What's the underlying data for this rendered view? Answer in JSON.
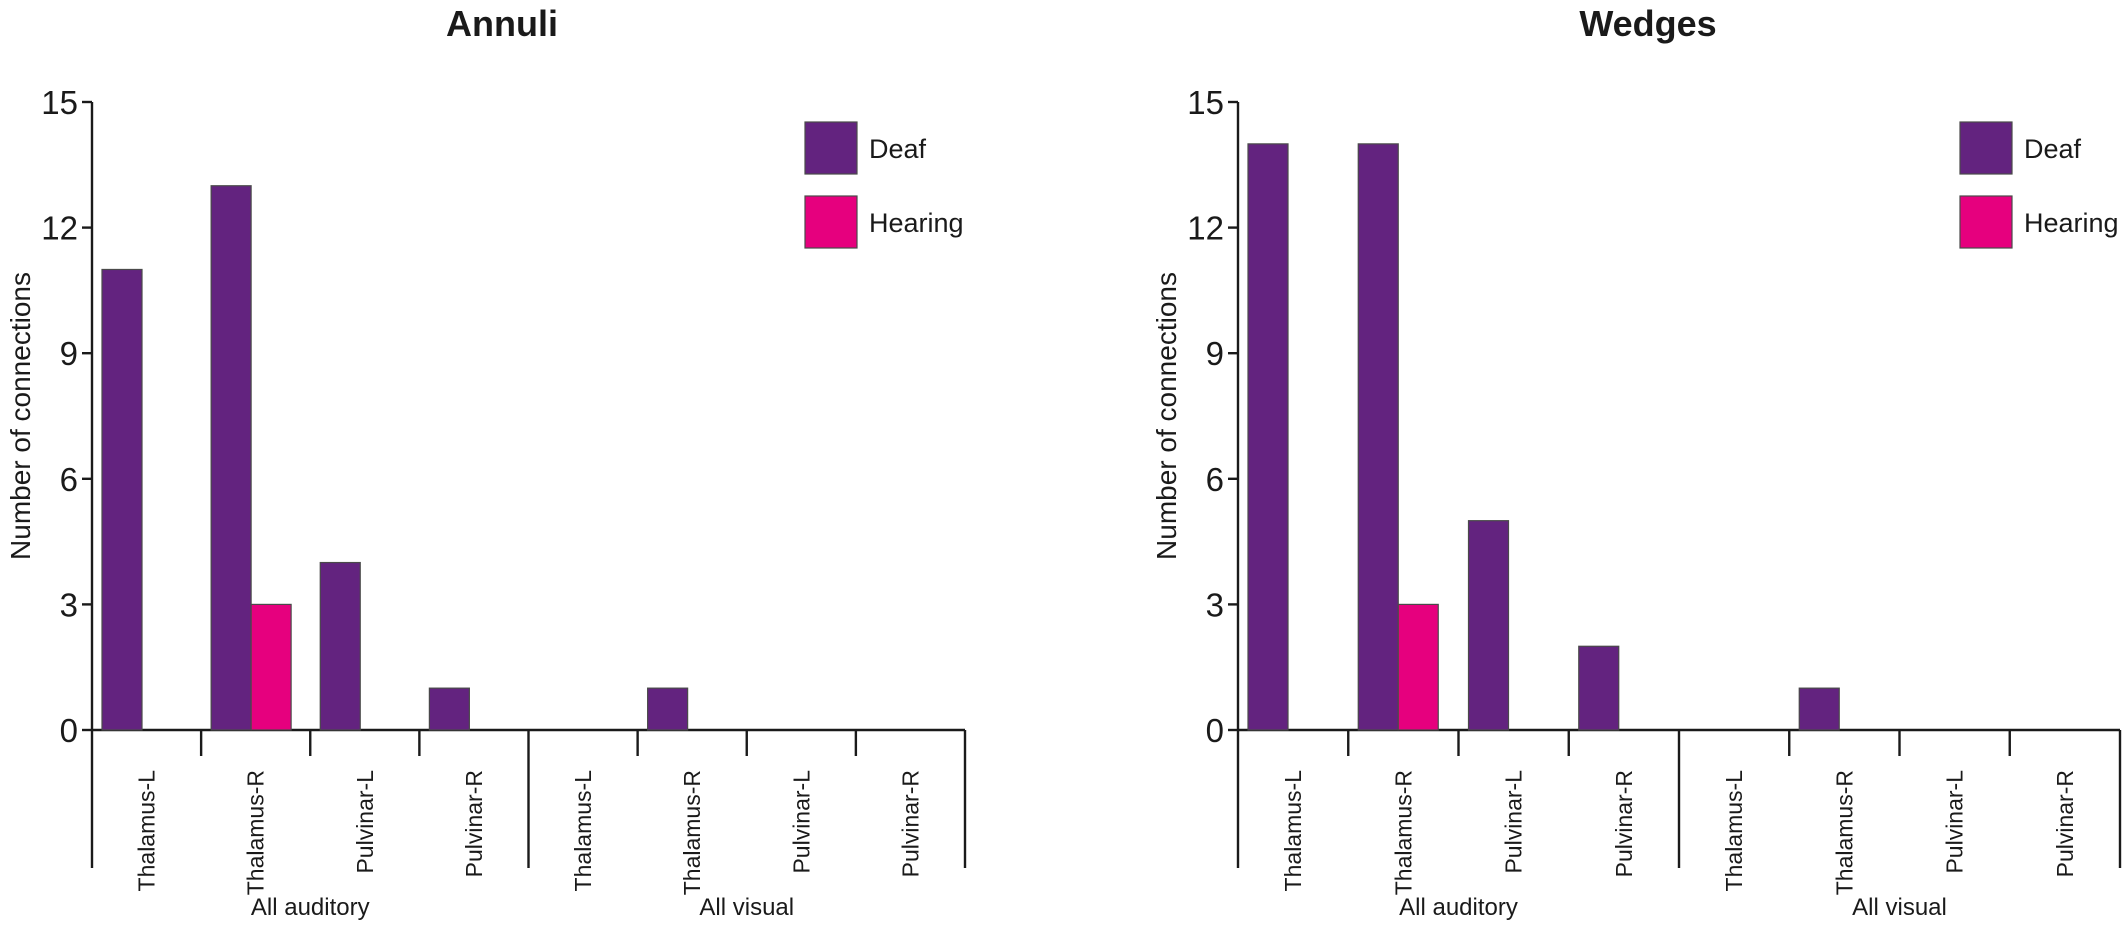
{
  "colors": {
    "deaf": "#63237f",
    "hearing": "#e6007e"
  },
  "chart_data": [
    {
      "type": "bar",
      "title": "Annuli",
      "ylabel": "Number of connections",
      "xlabel": "",
      "ylim": [
        0,
        15
      ],
      "yticks": [
        "0",
        "3",
        "6",
        "9",
        "12",
        "15"
      ],
      "categories": [
        "Thalamus-L",
        "Thalamus-R",
        "Pulvinar-L",
        "Pulvinar-R",
        "Thalamus-L",
        "Thalamus-R",
        "Pulvinar-L",
        "Pulvinar-R"
      ],
      "groups": [
        "All auditory",
        "All visual"
      ],
      "series": [
        {
          "name": "Deaf",
          "values": [
            11,
            13,
            4,
            1,
            0,
            1,
            0,
            0
          ]
        },
        {
          "name": "Hearing",
          "values": [
            0,
            3,
            0,
            0,
            0,
            0,
            0,
            0
          ]
        }
      ],
      "legend": "top-right",
      "grid": false
    },
    {
      "type": "bar",
      "title": "Wedges",
      "ylabel": "Number of connections",
      "xlabel": "",
      "ylim": [
        0,
        15
      ],
      "yticks": [
        "0",
        "3",
        "6",
        "9",
        "12",
        "15"
      ],
      "categories": [
        "Thalamus-L",
        "Thalamus-R",
        "Pulvinar-L",
        "Pulvinar-R",
        "Thalamus-L",
        "Thalamus-R",
        "Pulvinar-L",
        "Pulvinar-R"
      ],
      "groups": [
        "All auditory",
        "All visual"
      ],
      "series": [
        {
          "name": "Deaf",
          "values": [
            14,
            14,
            5,
            2,
            0,
            1,
            0,
            0
          ]
        },
        {
          "name": "Hearing",
          "values": [
            0,
            3,
            0,
            0,
            0,
            0,
            0,
            0
          ]
        }
      ],
      "legend": "top-right",
      "grid": false
    }
  ]
}
